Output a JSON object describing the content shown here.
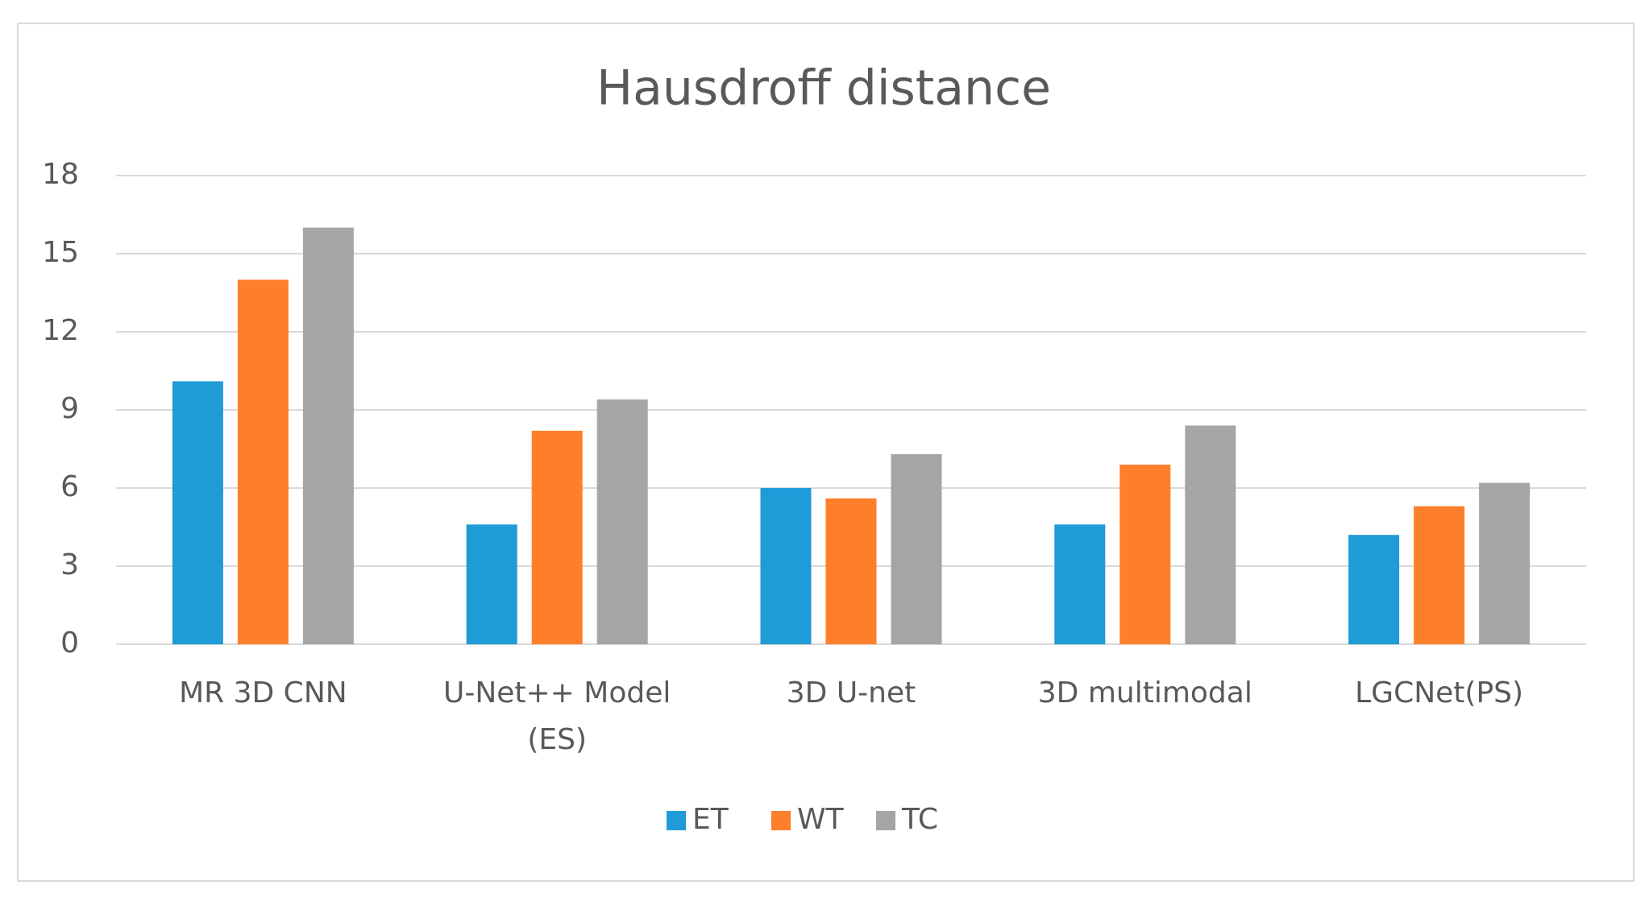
{
  "chart_data": {
    "type": "bar",
    "title": "Hausdroff distance",
    "categories": [
      "MR 3D CNN",
      "U-Net++ Model (ES)",
      "3D U-net",
      "3D multimodal",
      "LGCNet(PS)"
    ],
    "series": [
      {
        "name": "ET",
        "color": "#1f9bd7",
        "values": [
          10.1,
          4.6,
          6.0,
          4.6,
          4.2
        ]
      },
      {
        "name": "WT",
        "color": "#fe7f2a",
        "values": [
          14.0,
          8.2,
          5.6,
          6.9,
          5.3
        ]
      },
      {
        "name": "TC",
        "color": "#a5a5a5",
        "values": [
          16.0,
          9.4,
          7.3,
          8.4,
          6.2
        ]
      }
    ],
    "ylim": [
      0,
      18
    ],
    "yticks": [
      0,
      3,
      6,
      9,
      12,
      15,
      18
    ],
    "grid": true,
    "legend": "bottom"
  }
}
